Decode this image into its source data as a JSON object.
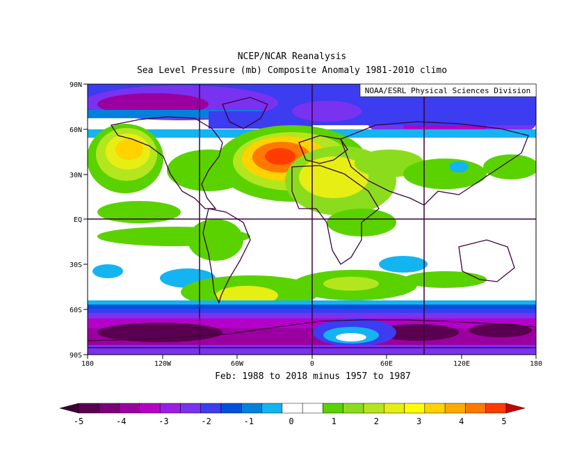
{
  "header": {
    "title": "NCEP/NCAR Reanalysis",
    "subtitle": "Sea Level Pressure (mb) Composite Anomaly 1981-2010 climo",
    "credit": "NOAA/ESRL Physical Sciences Division"
  },
  "footer": {
    "period": "Feb: 1988 to 2018 minus 1957 to 1987"
  },
  "axes": {
    "lat_labels": [
      "90N",
      "60N",
      "30N",
      "EQ",
      "30S",
      "60S",
      "90S"
    ],
    "lon_labels": [
      "180",
      "120W",
      "60W",
      "0",
      "60E",
      "120E",
      "180"
    ]
  },
  "colorbar": {
    "labels": [
      "-5",
      "-4",
      "-3",
      "-2",
      "-1",
      "0",
      "1",
      "2",
      "3",
      "4",
      "5"
    ],
    "colors": [
      "#5a0050",
      "#7a0078",
      "#9a00a0",
      "#b400c8",
      "#9a1ee6",
      "#7832f0",
      "#3c3cf0",
      "#0050dc",
      "#0082dc",
      "#14b4f0",
      "#ffffff",
      "#ffffff",
      "#5ad200",
      "#8cdc1e",
      "#b4e61e",
      "#e6ee14",
      "#ffff00",
      "#ffd200",
      "#ffaa00",
      "#ff7800",
      "#ff3c00"
    ],
    "under_color": "#3c0032",
    "over_color": "#c80000"
  }
}
